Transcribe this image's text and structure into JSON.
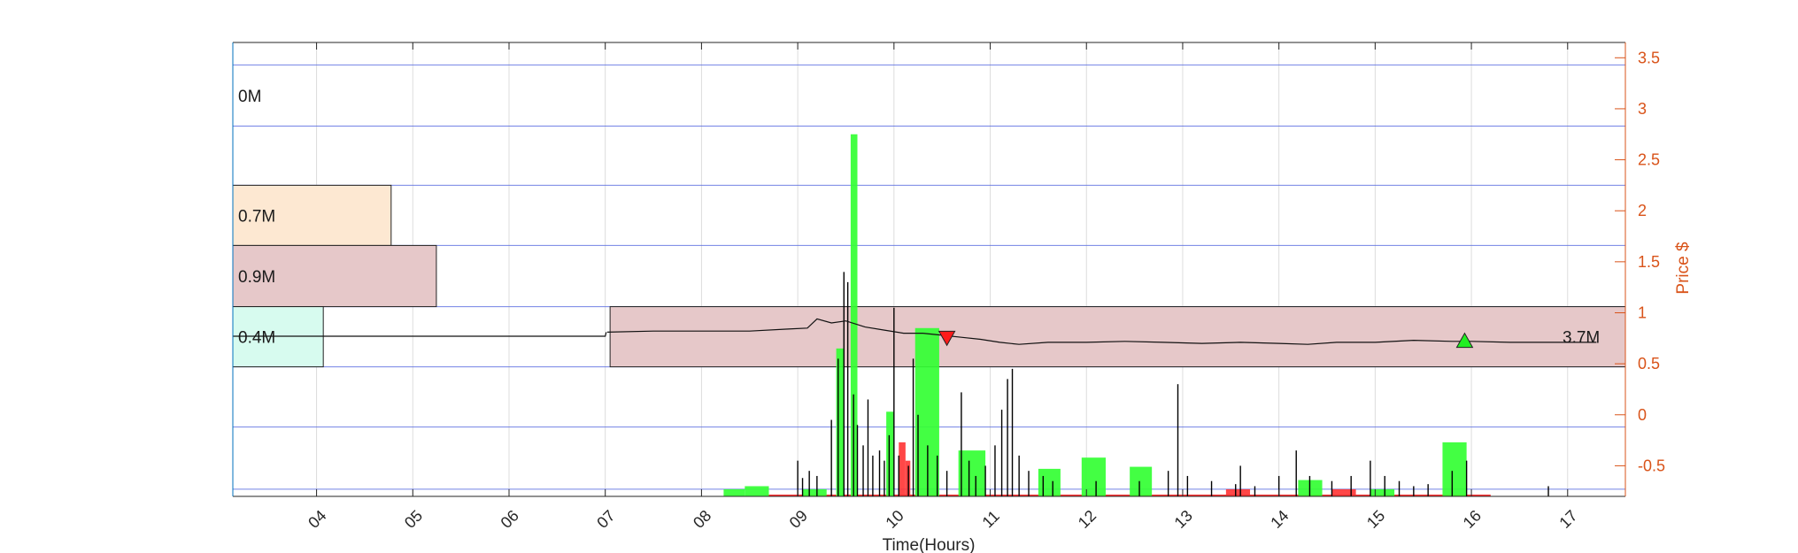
{
  "chart_data": {
    "type": "bar",
    "xlabel": "Time(Hours)",
    "ylabel": "Price $",
    "x_ticks": [
      "04",
      "05",
      "06",
      "07",
      "08",
      "09",
      "10",
      "11",
      "12",
      "13",
      "14",
      "15",
      "16",
      "17"
    ],
    "xlim": [
      3.13,
      17.6
    ],
    "y_ticks": [
      "-0.5",
      "0",
      "0.5",
      "1",
      "1.5",
      "2",
      "2.5",
      "3",
      "3.5"
    ],
    "ylim": [
      -0.8,
      3.65
    ],
    "grid": true,
    "colors": {
      "axis_right": "#d95319",
      "band_line": "#5b6ee1",
      "buy": "#33ff33",
      "sell": "#ff3333",
      "trade": "#000000",
      "band_high": "#fde8d2",
      "band_mid": "#e6c8c9",
      "band_low": "#d7fbef"
    },
    "volume_profile": {
      "bands": [
        {
          "label": "0M",
          "ymin": 2.83,
          "ymax": 3.43,
          "value_m": 0.0,
          "color": "none"
        },
        {
          "label": "0.7M",
          "ymin": 1.66,
          "ymax": 2.25,
          "value_m": 0.7,
          "color": "#fde8d2"
        },
        {
          "label": "0.9M",
          "ymin": 1.06,
          "ymax": 1.66,
          "value_m": 0.9,
          "color": "#e6c8c9"
        },
        {
          "label": "0.4M",
          "ymin": 0.47,
          "ymax": 1.06,
          "value_m": 0.4,
          "color": "#d7fbef"
        }
      ],
      "band_lines_y": [
        3.43,
        2.83,
        2.25,
        1.66,
        1.06,
        0.47,
        -0.12,
        -0.73
      ],
      "x_per_million": 2.35
    },
    "session_band": {
      "label": "3.7M",
      "xmin": 7.05,
      "xmax": 17.6,
      "ymin": 0.47,
      "ymax": 1.06,
      "color": "#e6c8c9"
    },
    "price_series": [
      {
        "name": "",
        "x": [
          3.13,
          7.0,
          7.01
        ],
        "y": [
          0.77,
          0.77,
          0.81
        ]
      },
      {
        "name": "",
        "x": [
          7.02,
          7.5,
          8.0,
          8.5,
          8.9,
          9.1,
          9.2,
          9.35,
          9.5,
          9.7,
          9.9,
          10.1,
          10.3,
          10.5,
          10.7,
          10.9,
          11.1,
          11.3,
          11.6,
          12.0,
          12.4,
          12.8,
          13.2,
          13.6,
          14.0,
          14.3,
          14.6,
          15.0,
          15.4,
          15.8,
          16.0,
          16.4,
          16.8,
          17.3
        ],
        "y": [
          0.81,
          0.82,
          0.82,
          0.82,
          0.84,
          0.85,
          0.94,
          0.9,
          0.92,
          0.86,
          0.83,
          0.8,
          0.8,
          0.78,
          0.76,
          0.74,
          0.71,
          0.69,
          0.71,
          0.71,
          0.72,
          0.71,
          0.7,
          0.71,
          0.7,
          0.69,
          0.71,
          0.71,
          0.73,
          0.72,
          0.72,
          0.71,
          0.71,
          0.71
        ]
      }
    ],
    "signals": [
      {
        "type": "sell",
        "x": 10.55,
        "y": 0.75
      },
      {
        "type": "buy",
        "x": 15.93,
        "y": 0.73
      }
    ],
    "buy_volume_bars": [
      {
        "x0": 8.23,
        "x1": 8.45,
        "y": -0.73
      },
      {
        "x0": 8.45,
        "x1": 8.7,
        "y": -0.7
      },
      {
        "x0": 9.05,
        "x1": 9.3,
        "y": -0.73
      },
      {
        "x0": 9.4,
        "x1": 9.48,
        "y": 0.65
      },
      {
        "x0": 9.55,
        "x1": 9.62,
        "y": 2.75
      },
      {
        "x0": 9.92,
        "x1": 10.0,
        "y": 0.03
      },
      {
        "x0": 10.22,
        "x1": 10.47,
        "y": 0.85
      },
      {
        "x0": 10.67,
        "x1": 10.95,
        "y": -0.35
      },
      {
        "x0": 11.5,
        "x1": 11.73,
        "y": -0.53
      },
      {
        "x0": 11.95,
        "x1": 12.2,
        "y": -0.42
      },
      {
        "x0": 12.45,
        "x1": 12.68,
        "y": -0.51
      },
      {
        "x0": 14.2,
        "x1": 14.45,
        "y": -0.64
      },
      {
        "x0": 14.95,
        "x1": 15.2,
        "y": -0.73
      },
      {
        "x0": 15.7,
        "x1": 15.95,
        "y": -0.27
      }
    ],
    "sell_volume_bars": [
      {
        "x0": 10.05,
        "x1": 10.12,
        "y": -0.27
      },
      {
        "x0": 10.12,
        "x1": 10.17,
        "y": -0.45
      },
      {
        "x0": 13.45,
        "x1": 13.7,
        "y": -0.73
      },
      {
        "x0": 14.55,
        "x1": 14.8,
        "y": -0.73
      }
    ],
    "trade_spikes": [
      {
        "x": 9.0,
        "y": -0.45
      },
      {
        "x": 9.05,
        "y": -0.62
      },
      {
        "x": 9.12,
        "y": -0.55
      },
      {
        "x": 9.2,
        "y": -0.6
      },
      {
        "x": 9.35,
        "y": -0.05
      },
      {
        "x": 9.42,
        "y": 0.55
      },
      {
        "x": 9.48,
        "y": 1.4
      },
      {
        "x": 9.52,
        "y": 1.3
      },
      {
        "x": 9.58,
        "y": 0.2
      },
      {
        "x": 9.62,
        "y": -0.1
      },
      {
        "x": 9.68,
        "y": -0.3
      },
      {
        "x": 9.73,
        "y": 0.15
      },
      {
        "x": 9.78,
        "y": -0.4
      },
      {
        "x": 9.85,
        "y": -0.35
      },
      {
        "x": 9.9,
        "y": -0.45
      },
      {
        "x": 9.95,
        "y": -0.2
      },
      {
        "x": 10.0,
        "y": 1.05
      },
      {
        "x": 10.05,
        "y": -0.4
      },
      {
        "x": 10.15,
        "y": -0.5
      },
      {
        "x": 10.2,
        "y": 0.55
      },
      {
        "x": 10.25,
        "y": 0.0
      },
      {
        "x": 10.35,
        "y": -0.3
      },
      {
        "x": 10.45,
        "y": -0.4
      },
      {
        "x": 10.55,
        "y": -0.55
      },
      {
        "x": 10.7,
        "y": 0.22
      },
      {
        "x": 10.78,
        "y": -0.45
      },
      {
        "x": 10.85,
        "y": -0.6
      },
      {
        "x": 10.95,
        "y": -0.5
      },
      {
        "x": 11.05,
        "y": -0.3
      },
      {
        "x": 11.12,
        "y": 0.05
      },
      {
        "x": 11.18,
        "y": 0.35
      },
      {
        "x": 11.23,
        "y": 0.45
      },
      {
        "x": 11.3,
        "y": -0.4
      },
      {
        "x": 11.4,
        "y": -0.55
      },
      {
        "x": 11.55,
        "y": -0.6
      },
      {
        "x": 11.65,
        "y": -0.65
      },
      {
        "x": 12.1,
        "y": -0.65
      },
      {
        "x": 12.55,
        "y": -0.65
      },
      {
        "x": 12.85,
        "y": -0.55
      },
      {
        "x": 12.95,
        "y": 0.3
      },
      {
        "x": 13.05,
        "y": -0.6
      },
      {
        "x": 13.3,
        "y": -0.65
      },
      {
        "x": 13.55,
        "y": -0.68
      },
      {
        "x": 13.6,
        "y": -0.5
      },
      {
        "x": 13.75,
        "y": -0.7
      },
      {
        "x": 14.0,
        "y": -0.6
      },
      {
        "x": 14.18,
        "y": -0.35
      },
      {
        "x": 14.32,
        "y": -0.6
      },
      {
        "x": 14.55,
        "y": -0.65
      },
      {
        "x": 14.75,
        "y": -0.6
      },
      {
        "x": 14.95,
        "y": -0.45
      },
      {
        "x": 15.1,
        "y": -0.6
      },
      {
        "x": 15.25,
        "y": -0.65
      },
      {
        "x": 15.4,
        "y": -0.7
      },
      {
        "x": 15.55,
        "y": -0.68
      },
      {
        "x": 15.8,
        "y": -0.55
      },
      {
        "x": 15.95,
        "y": -0.45
      },
      {
        "x": 16.8,
        "y": -0.7
      }
    ]
  }
}
